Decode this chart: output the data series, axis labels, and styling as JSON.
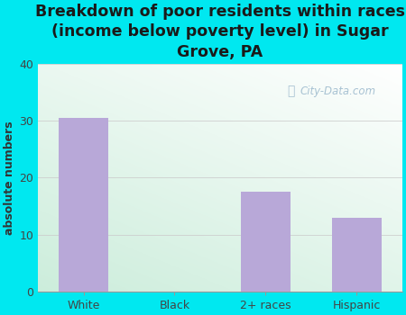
{
  "categories": [
    "White",
    "Black",
    "2+ races",
    "Hispanic"
  ],
  "values": [
    30.5,
    0,
    17.5,
    13
  ],
  "bar_color": "#b8a8d8",
  "title": "Breakdown of poor residents within races\n(income below poverty level) in Sugar\nGrove, PA",
  "ylabel": "absolute numbers",
  "ylim": [
    0,
    40
  ],
  "yticks": [
    0,
    10,
    20,
    30,
    40
  ],
  "fig_bg_color": "#00e8f0",
  "title_fontsize": 12.5,
  "ylabel_fontsize": 9,
  "watermark_text": "City-Data.com",
  "bar_width": 0.55,
  "tick_color": "#444444",
  "grid_color": "#cccccc"
}
